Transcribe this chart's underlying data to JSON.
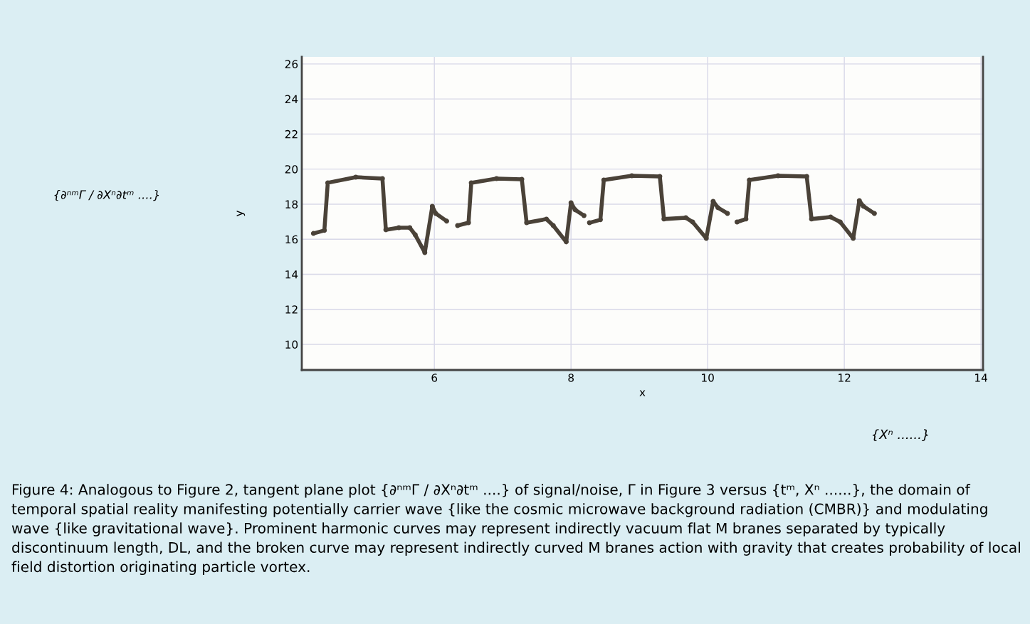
{
  "chart_data": {
    "type": "line",
    "xlabel": "x",
    "ylabel": "y",
    "xlim": [
      4.06,
      14.03
    ],
    "ylim": [
      8.54,
      26.4
    ],
    "xticks": [
      6,
      8,
      10,
      12,
      14
    ],
    "yticks": [
      10,
      12,
      14,
      16,
      18,
      20,
      22,
      24,
      26
    ],
    "grid": true,
    "marker": "circle",
    "line_style": "solid",
    "series": [
      {
        "color": "#4a4238",
        "x": [
          4.23,
          4.39,
          4.44,
          4.85,
          5.24,
          5.29,
          5.48,
          5.64,
          5.72,
          5.86,
          5.97,
          6.02,
          6.18,
          6.26,
          6.34,
          6.5,
          6.54,
          6.91,
          7.28,
          7.35,
          7.64,
          7.74,
          7.93,
          8.0,
          8.06,
          8.19,
          8.23,
          8.27,
          8.43,
          8.48,
          8.89,
          9.3,
          9.36,
          9.68,
          9.78,
          9.98,
          10.08,
          10.15,
          10.29,
          10.36,
          10.43,
          10.56,
          10.61,
          11.03,
          11.45,
          11.52,
          11.8,
          11.94,
          12.13,
          12.22,
          12.28,
          12.44
        ],
        "values": [
          16.33,
          16.5,
          19.22,
          19.54,
          19.46,
          16.54,
          16.66,
          16.66,
          16.25,
          15.24,
          17.88,
          17.47,
          17.03,
          null,
          16.78,
          16.94,
          19.22,
          19.46,
          19.42,
          16.94,
          17.15,
          16.78,
          15.85,
          18.08,
          17.68,
          17.35,
          null,
          16.94,
          17.11,
          19.38,
          19.62,
          19.58,
          17.15,
          17.23,
          16.98,
          16.05,
          18.16,
          17.8,
          17.47,
          null,
          16.98,
          17.15,
          19.38,
          19.62,
          19.58,
          17.15,
          17.27,
          16.98,
          16.05,
          18.2,
          17.88,
          17.47
        ]
      }
    ],
    "annotations": [
      "{∂ⁿᵐΓ / ∂Xⁿ∂tᵐ ....}",
      "{Xⁿ ......}",
      "Figure 4: Analogous to Figure 2, tangent plane plot {∂ⁿᵐΓ / ∂Xⁿ∂tᵐ ....} of signal/noise, Γ in Figure 3 versus {tᵐ, Xⁿ ......}, the domain of temporal spatial reality manifesting potentially carrier wave {like the cosmic microwave background radiation (CMBR)} and modulating wave {like gravitational wave}. Prominent harmonic curves may represent indirectly vacuum flat M branes separated by typically discontinuum length, DL, and the broken curve may represent indirectly curved M branes action with gravity that creates probability of local field distortion originating particle vortex."
    ]
  }
}
